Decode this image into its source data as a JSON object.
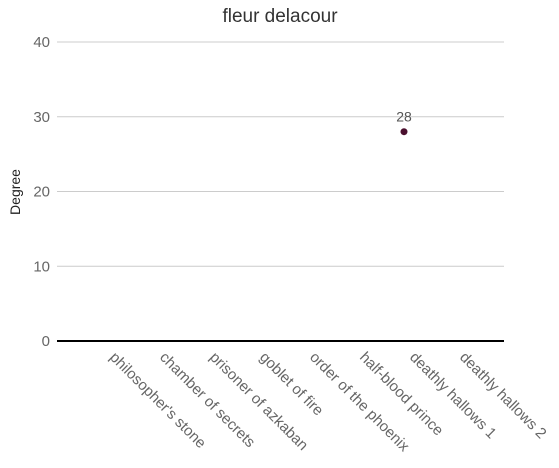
{
  "chart_data": {
    "type": "scatter",
    "title": "fleur delacour",
    "xlabel": "",
    "ylabel": "Degree",
    "categories": [
      "philosopher's stone",
      "chamber of secrets",
      "prisoner of azkaban",
      "goblet of fire",
      "order of the phoenix",
      "half-blood prince",
      "deathly hallows 1",
      "deathly hallows 2"
    ],
    "values": [
      null,
      null,
      null,
      null,
      null,
      null,
      28,
      null
    ],
    "data_labels": [
      "",
      "",
      "",
      "",
      "",
      "",
      "28",
      ""
    ],
    "ylim": [
      0,
      40
    ],
    "yticks": [
      "0",
      "10",
      "20",
      "30",
      "40"
    ],
    "grid": true,
    "legend": "none",
    "point_color": "#4a0f2e"
  }
}
